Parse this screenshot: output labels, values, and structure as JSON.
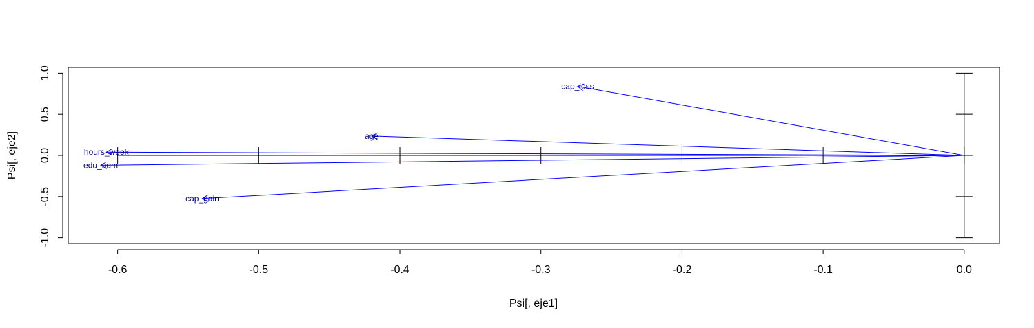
{
  "chart_data": {
    "type": "scatter",
    "subtype": "biplot-vectors",
    "title": "",
    "xlabel": "Psi[, eje1]",
    "ylabel": "Psi[, eje2]",
    "xlim": [
      -0.635,
      0.025
    ],
    "ylim": [
      -1.07,
      1.07
    ],
    "x_ticks": [
      -0.6,
      -0.5,
      -0.4,
      -0.3,
      -0.2,
      -0.1,
      0.0
    ],
    "x_tick_labels": [
      "-0.6",
      "-0.5",
      "-0.4",
      "-0.3",
      "-0.2",
      "-0.1",
      "0.0"
    ],
    "y_ticks": [
      -1.0,
      -0.5,
      0.0,
      0.5,
      1.0
    ],
    "y_tick_labels": [
      "-1.0",
      "-0.5",
      "0.0",
      "0.5",
      "1.0"
    ],
    "grid": false,
    "reference_axes": {
      "x_from": -0.6,
      "x_to": 0.0,
      "y_from": -1.0,
      "y_to": 1.0,
      "color": "#000000"
    },
    "arrow_color": "#0000ff",
    "label_color": "#00008b",
    "series": [
      {
        "name": "cap_loss",
        "x": -0.274,
        "y": 0.84
      },
      {
        "name": "age",
        "x": -0.42,
        "y": 0.235
      },
      {
        "name": "hours_week",
        "x": -0.608,
        "y": 0.04
      },
      {
        "name": "edu_num",
        "x": -0.612,
        "y": -0.12
      },
      {
        "name": "cap_gain",
        "x": -0.54,
        "y": -0.525
      }
    ]
  }
}
